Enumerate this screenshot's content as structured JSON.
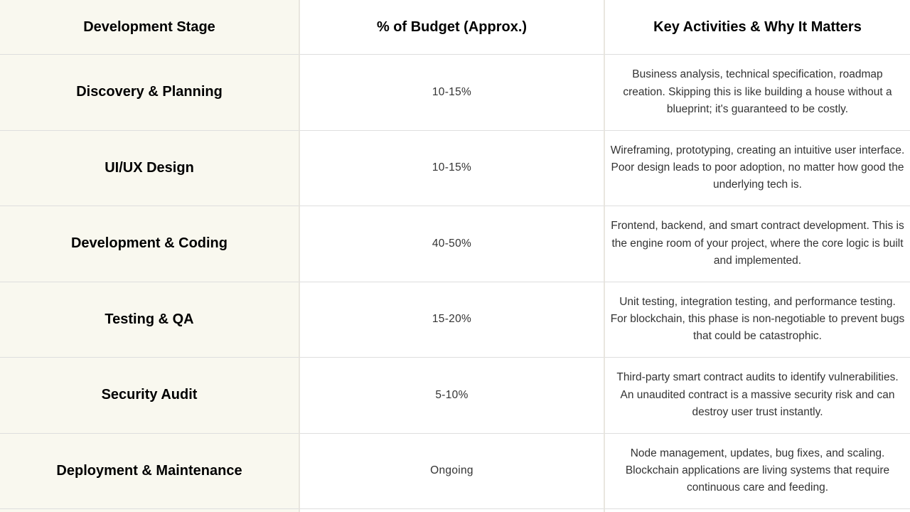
{
  "table": {
    "columns": [
      {
        "label": "Development Stage"
      },
      {
        "label": "% of Budget (Approx.)"
      },
      {
        "label": "Key Activities & Why It Matters"
      }
    ],
    "rows": [
      {
        "stage": "Discovery & Planning",
        "budget": "10-15%",
        "activities": "Business analysis, technical specification, roadmap creation. Skipping this is like building a house without a blueprint; it's guaranteed to be costly."
      },
      {
        "stage": "UI/UX Design",
        "budget": "10-15%",
        "activities": "Wireframing, prototyping, creating an intuitive user interface. Poor design leads to poor adoption, no matter how good the underlying tech is."
      },
      {
        "stage": "Development & Coding",
        "budget": "40-50%",
        "activities": "Frontend, backend, and smart contract development. This is the engine room of your project, where the core logic is built and implemented."
      },
      {
        "stage": "Testing & QA",
        "budget": "15-20%",
        "activities": "Unit testing, integration testing, and performance testing. For blockchain, this phase is non-negotiable to prevent bugs that could be catastrophic."
      },
      {
        "stage": "Security Audit",
        "budget": "5-10%",
        "activities": "Third-party smart contract audits to identify vulnerabilities. An unaudited contract is a massive security risk and can destroy user trust instantly."
      },
      {
        "stage": "Deployment & Maintenance",
        "budget": "Ongoing",
        "activities": "Node management, updates, bug fixes, and scaling. Blockchain applications are living systems that require continuous care and feeding."
      }
    ]
  },
  "colors": {
    "header_bg": "#FCA51A",
    "header_text": "#000000",
    "stage_col_bg": "#F9F8EF",
    "stage_text": "#000000",
    "body_bg": "#FFFFFF",
    "body_text": "#333333",
    "border": "#DEDEDE",
    "separator": "#E9E6DF"
  }
}
